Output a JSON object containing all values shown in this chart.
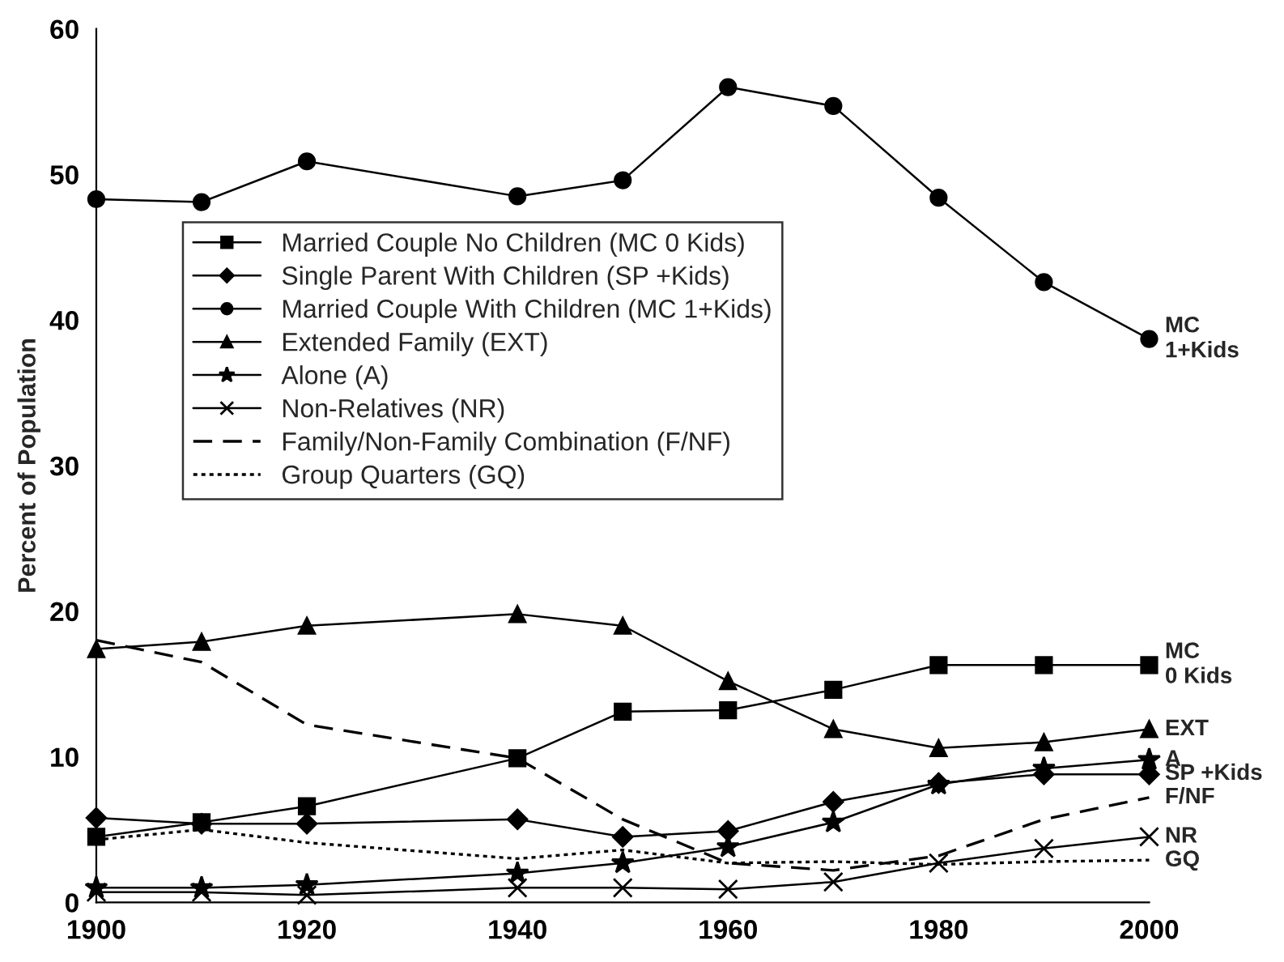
{
  "chart_data": {
    "type": "line",
    "ylabel": "Percent of Population",
    "x": [
      1900,
      1910,
      1920,
      1940,
      1950,
      1960,
      1970,
      1980,
      1990,
      2000
    ],
    "xlim": [
      1900,
      2000
    ],
    "xticks": [
      1900,
      1920,
      1940,
      1960,
      1980,
      2000
    ],
    "ylim": [
      0,
      60
    ],
    "yticks": [
      0,
      10,
      20,
      30,
      40,
      50,
      60
    ],
    "grid": false,
    "legend": "left",
    "series": [
      {
        "name": "Married Couple No Children (MC 0 Kids)",
        "color": "#000000",
        "marker": "square",
        "line_style": "solid",
        "values": [
          4.5,
          5.5,
          6.6,
          9.9,
          13.1,
          13.2,
          14.6,
          16.3,
          16.3,
          16.3
        ]
      },
      {
        "name": "Single Parent With Children (SP +Kids)",
        "color": "#000000",
        "marker": "diamond",
        "line_style": "solid",
        "values": [
          5.8,
          5.4,
          5.4,
          5.7,
          4.5,
          4.9,
          6.9,
          8.2,
          8.8,
          8.8
        ]
      },
      {
        "name": "Married Couple With Children (MC 1+Kids)",
        "color": "#000000",
        "marker": "circle",
        "line_style": "solid",
        "values": [
          48.3,
          48.1,
          50.9,
          48.5,
          49.6,
          56.0,
          54.7,
          48.4,
          42.6,
          38.7
        ]
      },
      {
        "name": "Extended Family (EXT)",
        "color": "#000000",
        "marker": "triangle",
        "line_style": "solid",
        "values": [
          17.4,
          17.9,
          19.0,
          19.8,
          19.0,
          15.2,
          11.9,
          10.6,
          11.0,
          11.9
        ]
      },
      {
        "name": "Alone (A)",
        "color": "#000000",
        "marker": "star",
        "line_style": "solid",
        "values": [
          1.0,
          1.0,
          1.2,
          2.0,
          2.7,
          3.8,
          5.5,
          8.1,
          9.2,
          9.8
        ]
      },
      {
        "name": "Non-Relatives (NR)",
        "color": "#000000",
        "marker": "cross",
        "line_style": "solid",
        "values": [
          0.7,
          0.7,
          0.5,
          1.0,
          1.0,
          0.9,
          1.4,
          2.7,
          3.7,
          4.5
        ]
      },
      {
        "name": "Family/Non-Family Combination (F/NF)",
        "color": "#000000",
        "marker": "none",
        "line_style": "dashed",
        "values": [
          18.0,
          16.5,
          12.2,
          9.9,
          5.7,
          2.7,
          2.2,
          3.2,
          5.7,
          7.2
        ]
      },
      {
        "name": "Group Quarters (GQ)",
        "color": "#000000",
        "marker": "none",
        "line_style": "dotted",
        "values": [
          4.3,
          5.0,
          4.1,
          3.0,
          3.6,
          2.7,
          2.8,
          2.6,
          2.8,
          2.9
        ]
      }
    ],
    "annotations": [
      "MC\n1+Kids",
      "MC\n0 Kids",
      "EXT",
      "A",
      "SP +Kids",
      "F/NF",
      "NR",
      "GQ"
    ]
  }
}
